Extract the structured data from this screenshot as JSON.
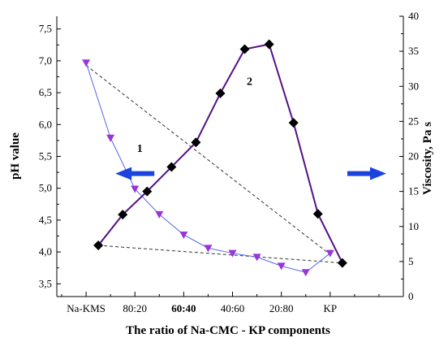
{
  "chart_data": {
    "type": "line",
    "xlabel": "The ratio of Na-CMC - KP components",
    "x_tick_labels": [
      "Na-KMS",
      "80:20",
      "60:40",
      "40:60",
      "20:80",
      "KP"
    ],
    "x_tick_bold": [
      false,
      false,
      true,
      false,
      false,
      false
    ],
    "y_left": {
      "label": "pH value",
      "range": [
        3.3,
        7.7
      ],
      "ticks": [
        3.5,
        4.0,
        4.5,
        5.0,
        5.5,
        6.0,
        6.5,
        7.0,
        7.5
      ],
      "tick_labels": [
        "3,5",
        "4,0",
        "4,5",
        "5,0",
        "5,5",
        "6,0",
        "6,5",
        "7,0",
        "7,5"
      ]
    },
    "y_right": {
      "label": "Viscosity, Pa s",
      "range": [
        0,
        40
      ],
      "ticks": [
        0,
        5,
        10,
        15,
        20,
        25,
        30,
        35,
        40
      ],
      "tick_labels": [
        "0",
        "5",
        "10",
        "15",
        "20",
        "25",
        "30",
        "35",
        "40"
      ]
    },
    "series": [
      {
        "name": "1",
        "axis": "left",
        "color": "#5566ee",
        "marker_color": "#9933dd",
        "marker": "triangle-down",
        "x": [
          0,
          10,
          20,
          30,
          40,
          50,
          60,
          70,
          80,
          90,
          100
        ],
        "values": [
          6.97,
          5.79,
          4.99,
          4.59,
          4.27,
          4.06,
          3.98,
          3.92,
          3.78,
          3.68,
          3.98
        ]
      },
      {
        "name": "2",
        "axis": "right",
        "color": "#551188",
        "marker_color": "#000000",
        "marker": "diamond",
        "x": [
          5,
          15,
          25,
          35,
          45,
          55,
          65,
          75,
          85,
          95,
          105
        ],
        "values": [
          7.3,
          11.7,
          15,
          18.5,
          22,
          29,
          35.3,
          36,
          24.8,
          11.8,
          4.8
        ]
      }
    ],
    "reference_lines": [
      {
        "axis": "right",
        "from": [
          0,
          33
        ],
        "to": [
          100,
          6
        ]
      },
      {
        "axis": "right",
        "from": [
          5,
          7.3
        ],
        "to": [
          105,
          4.8
        ]
      }
    ],
    "annotations": [
      {
        "text": "1",
        "axis": "left",
        "x": 22,
        "y": 5.57
      },
      {
        "text": "2",
        "axis": "right",
        "x": 67,
        "y": 30.2
      },
      {
        "shape": "arrow-left",
        "axis": "left",
        "x": 12,
        "y": 5.23,
        "color": "#1a44dd"
      },
      {
        "shape": "arrow-right",
        "axis": "left",
        "x": 123,
        "y": 5.23,
        "color": "#1a44dd"
      }
    ],
    "grid": false,
    "legend": "none"
  }
}
